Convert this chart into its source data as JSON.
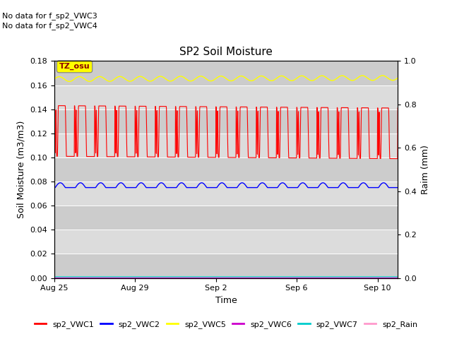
{
  "title": "SP2 Soil Moisture",
  "ylabel_left": "Soil Moisture (m3/m3)",
  "ylabel_right": "Raim (mm)",
  "xlabel": "Time",
  "no_data_text": [
    "No data for f_sp2_VWC3",
    "No data for f_sp2_VWC4"
  ],
  "tz_label": "TZ_osu",
  "ylim_left": [
    0.0,
    0.18
  ],
  "ylim_right": [
    0.0,
    1.0
  ],
  "yticks_left": [
    0.0,
    0.02,
    0.04,
    0.06,
    0.08,
    0.1,
    0.12,
    0.14,
    0.16,
    0.18
  ],
  "yticks_right": [
    0.0,
    0.2,
    0.4,
    0.6,
    0.8,
    1.0
  ],
  "xtick_days": [
    0,
    4,
    8,
    12,
    16
  ],
  "xtick_labels": [
    "Aug 25",
    "Aug 29",
    "Sep 2",
    "Sep 6",
    "Sep 10"
  ],
  "total_days": 17,
  "color_vwc1": "#FF0000",
  "color_vwc2": "#0000FF",
  "color_vwc5": "#FFFF00",
  "color_vwc6": "#CC00CC",
  "color_vwc7": "#00CCCC",
  "color_rain": "#FF99CC",
  "band_colors": [
    "#CCCCCC",
    "#DCDCDC"
  ],
  "band_edges": [
    0.0,
    0.02,
    0.04,
    0.06,
    0.08,
    0.1,
    0.12,
    0.14,
    0.16,
    0.18
  ],
  "legend_entries": [
    "sp2_VWC1",
    "sp2_VWC2",
    "sp2_VWC5",
    "sp2_VWC6",
    "sp2_VWC7",
    "sp2_Rain"
  ],
  "legend_colors": [
    "#FF0000",
    "#0000FF",
    "#FFFF00",
    "#CC00CC",
    "#00CCCC",
    "#FF99CC"
  ]
}
